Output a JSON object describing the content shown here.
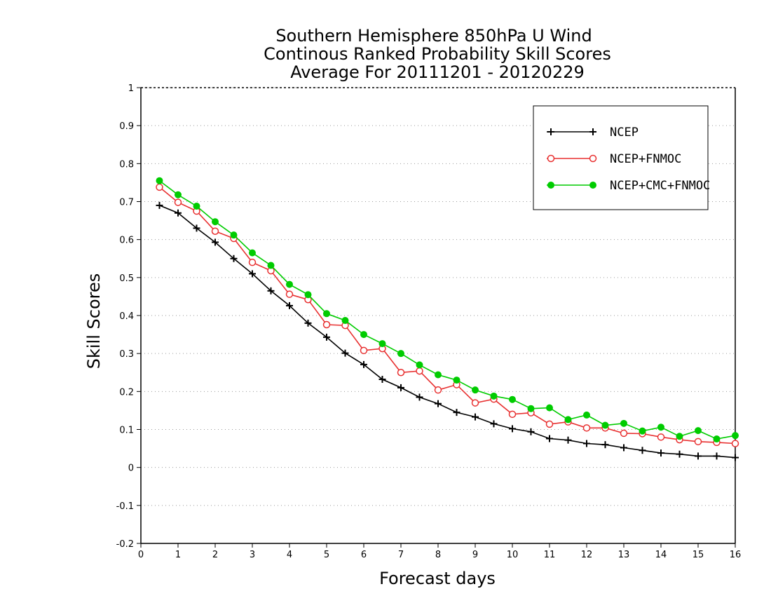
{
  "chart_data": {
    "type": "line",
    "title": [
      "Southern Hemisphere 850hPa U Wind",
      "Continous Ranked Probability Skill Scores",
      "Average For 20111201 - 20120229"
    ],
    "xlabel": "Forecast days",
    "ylabel": "Skill Scores",
    "xlim": [
      0,
      16
    ],
    "ylim": [
      -0.2,
      1
    ],
    "xticks": [
      0,
      1,
      2,
      3,
      4,
      5,
      6,
      7,
      8,
      9,
      10,
      11,
      12,
      13,
      14,
      15,
      16
    ],
    "yticks": [
      -0.2,
      -0.1,
      0,
      0.1,
      0.2,
      0.3,
      0.4,
      0.5,
      0.6,
      0.7,
      0.8,
      0.9,
      1
    ],
    "ytick_labels": [
      "-0.2",
      "-0.1",
      "0",
      "0.1",
      "0.2",
      "0.3",
      "0.4",
      "0.5",
      "0.6",
      "0.7",
      "0.8",
      "0.9",
      "1"
    ],
    "grid": "horizontal dotted",
    "legend_position": "top-right",
    "x": [
      0.5,
      1,
      1.5,
      2,
      2.5,
      3,
      3.5,
      4,
      4.5,
      5,
      5.5,
      6,
      6.5,
      7,
      7.5,
      8,
      8.5,
      9,
      9.5,
      10,
      10.5,
      11,
      11.5,
      12,
      12.5,
      13,
      13.5,
      14,
      14.5,
      15,
      15.5,
      16
    ],
    "series": [
      {
        "name": "NCEP",
        "color": "#000000",
        "marker": "plus",
        "values": [
          0.69,
          0.67,
          0.63,
          0.593,
          0.55,
          0.51,
          0.465,
          0.426,
          0.38,
          0.343,
          0.301,
          0.271,
          0.232,
          0.21,
          0.185,
          0.168,
          0.145,
          0.133,
          0.115,
          0.102,
          0.094,
          0.076,
          0.072,
          0.063,
          0.06,
          0.052,
          0.045,
          0.038,
          0.035,
          0.03,
          0.03,
          0.026
        ]
      },
      {
        "name": "NCEP+FNMOC",
        "color": "#e83030",
        "marker": "open-circle",
        "values": [
          0.738,
          0.698,
          0.675,
          0.622,
          0.603,
          0.54,
          0.518,
          0.456,
          0.442,
          0.376,
          0.374,
          0.308,
          0.313,
          0.25,
          0.254,
          0.204,
          0.218,
          0.17,
          0.18,
          0.14,
          0.144,
          0.114,
          0.12,
          0.104,
          0.104,
          0.09,
          0.089,
          0.08,
          0.073,
          0.068,
          0.066,
          0.063
        ]
      },
      {
        "name": "NCEP+CMC+FNMOC",
        "color": "#00cc00",
        "marker": "filled-circle",
        "values": [
          0.755,
          0.718,
          0.688,
          0.647,
          0.612,
          0.565,
          0.532,
          0.482,
          0.455,
          0.405,
          0.387,
          0.35,
          0.326,
          0.3,
          0.27,
          0.244,
          0.23,
          0.204,
          0.188,
          0.179,
          0.155,
          0.157,
          0.126,
          0.138,
          0.111,
          0.116,
          0.096,
          0.106,
          0.082,
          0.097,
          0.075,
          0.084
        ]
      }
    ]
  }
}
